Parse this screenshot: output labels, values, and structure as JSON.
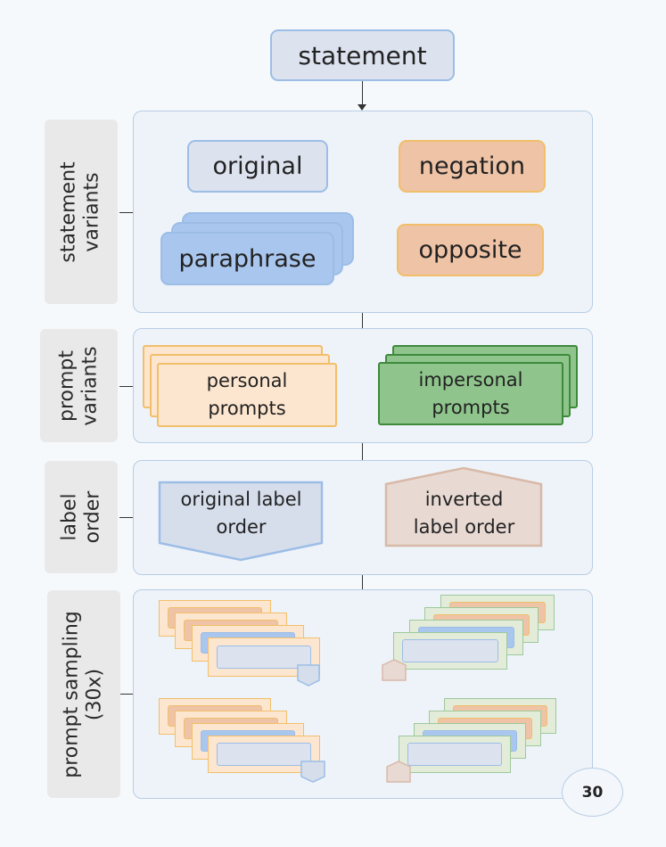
{
  "root": {
    "label": "statement"
  },
  "sections": {
    "statement_variants": {
      "side_label_1": "statement",
      "side_label_2": "variants",
      "original": "original",
      "negation": "negation",
      "paraphrase": "paraphrase",
      "opposite": "opposite"
    },
    "prompt_variants": {
      "side_label_1": "prompt",
      "side_label_2": "variants",
      "personal_line1": "personal",
      "personal_line2": "prompts",
      "impersonal_line1": "impersonal",
      "impersonal_line2": "prompts"
    },
    "label_order": {
      "side_label_1": "label",
      "side_label_2": "order",
      "original_line1": "original label",
      "original_line2": "order",
      "inverted_line1": "inverted",
      "inverted_line2": "label order"
    },
    "prompt_sampling": {
      "side_label_1": "prompt sampling",
      "side_label_2": "(30x)",
      "count": "30"
    }
  },
  "colors": {
    "blue_fill": "#dce3ef",
    "blue_border": "#9cbde6",
    "orange_fill": "#efc3a6",
    "orange_border": "#f1bf6a",
    "personal_fill": "#fde6cf",
    "impersonal_fill": "#8fc58c",
    "impersonal_border": "#3e8a3c",
    "inverted_fill": "#e8d9d3",
    "inverted_border": "#d8b9a8"
  }
}
